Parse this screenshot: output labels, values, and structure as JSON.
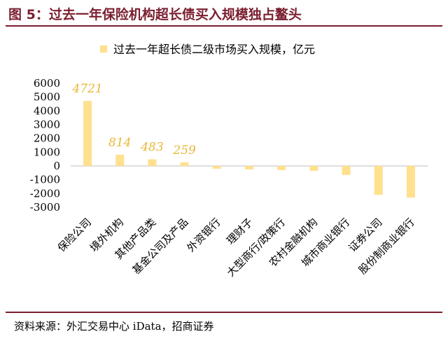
{
  "figure": {
    "title": "图 5：过去一年保险机构超长债买入规模独占鳌头",
    "source": "资料来源：外汇交易中心 iData，招商证券"
  },
  "colors": {
    "accent": "#7a1f2e",
    "bar": "#ffe08e",
    "data_label": "#e8b83a"
  },
  "chart_data": {
    "type": "bar",
    "title": "",
    "xlabel": "",
    "ylabel": "",
    "ylim": [
      -3000,
      6000
    ],
    "yticks": [
      6000,
      5000,
      4000,
      3000,
      2000,
      1000,
      0,
      -1000,
      -2000,
      -3000
    ],
    "grid": false,
    "legend_position": "top",
    "categories": [
      "保险公司",
      "境外机构",
      "其他产品类",
      "基金公司及产品",
      "外资银行",
      "理财子",
      "大型商行/政策行",
      "农村金融机构",
      "城市商业银行",
      "证券公司",
      "股份制商业银行"
    ],
    "series": [
      {
        "name": "过去一年超长债二级市场买入规模，亿元",
        "values": [
          4721,
          814,
          483,
          259,
          -200,
          -250,
          -300,
          -350,
          -650,
          -2100,
          -2300
        ],
        "data_labels": [
          "4721",
          "814",
          "483",
          "259",
          "",
          "",
          "",
          "",
          "",
          "",
          ""
        ]
      }
    ]
  }
}
